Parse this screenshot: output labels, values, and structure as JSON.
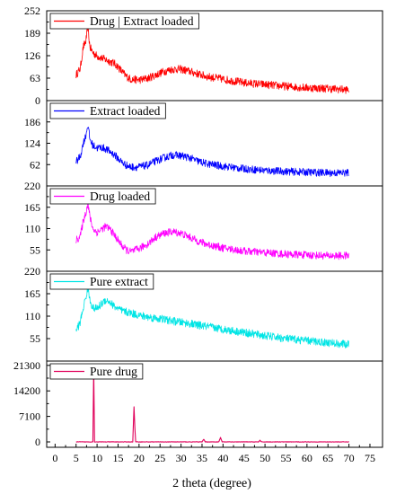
{
  "chart_data": {
    "type": "line",
    "xlabel": "2 theta (degree)",
    "xlim": [
      -2,
      78
    ],
    "x_ticks": [
      0,
      5,
      10,
      15,
      20,
      25,
      30,
      35,
      40,
      45,
      50,
      55,
      60,
      65,
      70,
      75
    ],
    "x_tick_labels": [
      "0",
      "5",
      "10",
      "15",
      "20",
      "25",
      "30",
      "35",
      "40",
      "45",
      "50",
      "55",
      "60",
      "65",
      "70",
      "75"
    ],
    "grid": false,
    "panels": [
      {
        "name": "Drug | Extract loaded",
        "color": "#ff0000",
        "ylim": [
          0,
          252
        ],
        "y_ticks": [
          0,
          63,
          126,
          189,
          252
        ],
        "y_tick_labels": [
          "0",
          "63",
          "126",
          "189",
          "252"
        ],
        "x": [
          5,
          6,
          6.7,
          7.3,
          7.8,
          8.3,
          9,
          10,
          11,
          12,
          13,
          14,
          15,
          16,
          17,
          18,
          20,
          22,
          24,
          26,
          28,
          30,
          32,
          34,
          36,
          40,
          45,
          50,
          55,
          60,
          65,
          70
        ],
        "values": [
          72,
          90,
          150,
          165,
          205,
          150,
          135,
          125,
          120,
          115,
          110,
          105,
          95,
          80,
          68,
          60,
          58,
          62,
          72,
          82,
          88,
          88,
          82,
          75,
          68,
          60,
          50,
          45,
          40,
          36,
          34,
          30
        ]
      },
      {
        "name": "Extract loaded",
        "color": "#0000ff",
        "ylim": [
          0,
          248
        ],
        "y_ticks": [
          62,
          124,
          186
        ],
        "y_tick_labels": [
          "62",
          "124",
          "186"
        ],
        "x": [
          5,
          6,
          6.7,
          7.3,
          7.8,
          8.3,
          9,
          10,
          11,
          12,
          13,
          14,
          15,
          16,
          17,
          18,
          20,
          22,
          24,
          26,
          28,
          30,
          32,
          34,
          36,
          40,
          45,
          50,
          55,
          60,
          65,
          70
        ],
        "values": [
          70,
          85,
          125,
          145,
          178,
          135,
          118,
          110,
          112,
          108,
          100,
          92,
          80,
          68,
          60,
          55,
          55,
          60,
          72,
          82,
          90,
          88,
          82,
          72,
          65,
          57,
          50,
          45,
          42,
          40,
          38,
          38
        ]
      },
      {
        "name": "Drug loaded",
        "color": "#ff00ff",
        "ylim": [
          0,
          220
        ],
        "y_ticks": [
          55,
          110,
          165,
          220
        ],
        "y_tick_labels": [
          "55",
          "110",
          "165",
          "220"
        ],
        "x": [
          5,
          6,
          6.7,
          7.3,
          7.8,
          8.3,
          9,
          10,
          11,
          12,
          13,
          14,
          15,
          16,
          17,
          18,
          20,
          22,
          24,
          26,
          28,
          30,
          32,
          34,
          36,
          40,
          45,
          50,
          55,
          60,
          65,
          70
        ],
        "values": [
          80,
          90,
          130,
          150,
          175,
          140,
          110,
          100,
          108,
          115,
          110,
          95,
          80,
          65,
          55,
          50,
          58,
          70,
          88,
          98,
          102,
          98,
          88,
          78,
          70,
          60,
          52,
          48,
          44,
          42,
          40,
          40
        ]
      },
      {
        "name": "Pure extract",
        "color": "#00e5e5",
        "ylim": [
          0,
          220
        ],
        "y_ticks": [
          55,
          110,
          165,
          220
        ],
        "y_tick_labels": [
          "55",
          "110",
          "165",
          "220"
        ],
        "x": [
          5,
          6,
          6.7,
          7.3,
          7.8,
          8.3,
          9,
          10,
          11,
          12,
          13,
          14,
          15,
          16,
          17,
          18,
          20,
          22,
          24,
          26,
          28,
          30,
          32,
          34,
          36,
          40,
          45,
          50,
          55,
          60,
          65,
          70
        ],
        "values": [
          75,
          95,
          130,
          155,
          178,
          150,
          130,
          128,
          140,
          150,
          145,
          135,
          128,
          122,
          120,
          118,
          112,
          108,
          105,
          102,
          98,
          95,
          92,
          88,
          85,
          78,
          70,
          62,
          55,
          50,
          45,
          40
        ]
      },
      {
        "name": "Pure drug",
        "color": "#e0005a",
        "ylim": [
          -1500,
          22500
        ],
        "y_ticks": [
          0,
          7100,
          14200,
          21300
        ],
        "y_tick_labels": [
          "0",
          "7100",
          "14200",
          "21300"
        ],
        "x": [
          5,
          9.0,
          9.2,
          9.4,
          9.6,
          10,
          15,
          18.5,
          18.8,
          19.0,
          19.2,
          19.6,
          25,
          35,
          35.4,
          35.8,
          39,
          39.4,
          39.8,
          48.5,
          48.8,
          49.1,
          60,
          70
        ],
        "values": [
          0,
          0,
          20500,
          0,
          0,
          0,
          0,
          0,
          9800,
          4000,
          0,
          0,
          0,
          0,
          700,
          0,
          0,
          1200,
          0,
          0,
          450,
          0,
          0,
          0
        ]
      }
    ]
  }
}
